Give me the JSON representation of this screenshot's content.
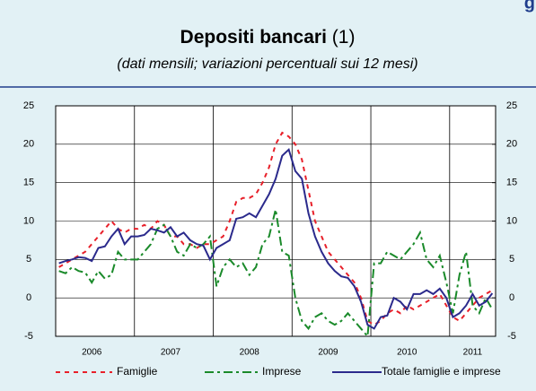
{
  "header_fragment": "g",
  "chart_data": {
    "type": "line",
    "title": "Depositi bancari",
    "title_note": "(1)",
    "subtitle": "(dati mensili; variazioni percentuali sui 12 mesi)",
    "categories": [
      null,
      null,
      null,
      null,
      null,
      "2006",
      null,
      null,
      null,
      null,
      null,
      null,
      null,
      null,
      null,
      null,
      null,
      "2007",
      null,
      null,
      null,
      null,
      null,
      null,
      null,
      null,
      null,
      null,
      null,
      "2008",
      null,
      null,
      null,
      null,
      null,
      null,
      null,
      null,
      null,
      null,
      null,
      "2009",
      null,
      null,
      null,
      null,
      null,
      null,
      null,
      null,
      null,
      null,
      null,
      "2010",
      null,
      null,
      null,
      null,
      null,
      null,
      null,
      null,
      null,
      "2011",
      null,
      null,
      null
    ],
    "ylim": [
      -5,
      25
    ],
    "yticks": [
      -5,
      0,
      5,
      10,
      15,
      20,
      25
    ],
    "y2lim": [
      -5,
      25
    ],
    "y2ticks": [
      -5,
      0,
      5,
      10,
      15,
      20,
      25
    ],
    "grid": true,
    "series": [
      {
        "name": "Famiglie",
        "color": "#e8202a",
        "line_style": "dashed",
        "values": [
          4,
          4.5,
          5,
          5.5,
          6,
          7,
          8,
          9,
          10,
          9,
          8.5,
          9,
          9,
          9.5,
          9,
          10,
          9.5,
          8,
          8,
          7,
          7,
          6.5,
          7,
          7,
          7.5,
          8,
          10,
          12.5,
          13,
          13,
          13.5,
          15,
          17,
          20,
          21.5,
          21,
          20,
          18,
          14,
          10,
          8,
          6,
          5,
          4,
          3,
          2,
          0,
          -3,
          -3.5,
          -3,
          -2,
          -1.5,
          -2,
          -1,
          -1.5,
          -1,
          -0.5,
          0,
          0.5,
          -1,
          -2.5,
          -3,
          -2,
          -1,
          0,
          0.5,
          1
        ]
      },
      {
        "name": "Imprese",
        "color": "#1a8a2a",
        "line_style": "dashdot",
        "values": [
          3.5,
          3.2,
          4,
          3.5,
          3.3,
          2,
          3.5,
          2.5,
          3,
          6,
          5,
          5,
          5,
          6,
          7,
          9,
          9.5,
          8,
          6,
          5.5,
          7,
          6.5,
          7,
          8,
          1.5,
          4,
          5,
          4,
          4.5,
          3,
          4,
          7,
          8,
          11.5,
          6,
          5.5,
          0,
          -3,
          -4,
          -2.5,
          -2,
          -3,
          -3.5,
          -3,
          -2,
          -3,
          -4,
          -5,
          4.5,
          4.5,
          6,
          5.5,
          5,
          6,
          7,
          8.5,
          5,
          4,
          5.5,
          2,
          -2,
          3,
          6,
          -1,
          -2,
          0,
          -1.5
        ]
      },
      {
        "name": "Totale famiglie e imprese",
        "color": "#2b2a8c",
        "line_style": "solid",
        "values": [
          4.5,
          4.8,
          5,
          5.3,
          5.2,
          4.8,
          6.5,
          6.7,
          8,
          9,
          7,
          8,
          8,
          8.2,
          9,
          8.8,
          8.5,
          9.2,
          8,
          8.5,
          7.5,
          7,
          6.8,
          5,
          6.5,
          7,
          7.5,
          10.3,
          10.5,
          11,
          10.5,
          12,
          13.5,
          15.5,
          18.5,
          19.3,
          16.5,
          15.5,
          11,
          8,
          6,
          4.5,
          3.5,
          2.8,
          2.6,
          1.5,
          -0.5,
          -3.5,
          -4,
          -2.5,
          -2.3,
          0,
          -0.5,
          -1.5,
          0.5,
          0.5,
          1,
          0.5,
          1.2,
          0,
          -2.5,
          -2,
          -1,
          0.5,
          -1,
          -0.5,
          0.6
        ]
      }
    ]
  }
}
